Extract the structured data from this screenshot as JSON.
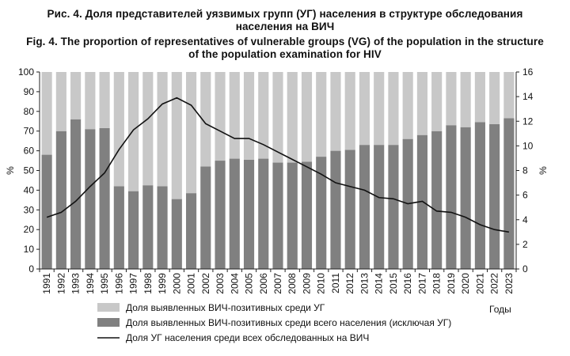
{
  "figure": {
    "title_ru": [
      "Рис. 4. Доля представителей уязвимых групп (УГ) населения в структуре обследования",
      "населения на ВИЧ"
    ],
    "title_en": [
      "Fig. 4. The proportion of representatives of vulnerable groups (VG) of the population in the structure",
      "of the population examination for HIV"
    ]
  },
  "chart_data": {
    "type": "bar",
    "categories": [
      "1991",
      "1992",
      "1993",
      "1994",
      "1995",
      "1996",
      "1997",
      "1998",
      "1999",
      "2000",
      "2001",
      "2002",
      "2003",
      "2004",
      "2005",
      "2006",
      "2007",
      "2008",
      "2009",
      "2010",
      "2011",
      "2012",
      "2013",
      "2014",
      "2015",
      "2016",
      "2017",
      "2018",
      "2019",
      "2020",
      "2021",
      "2022",
      "2023"
    ],
    "xlabel": "Годы",
    "ylabel_left": "%",
    "ylabel_right": "%",
    "ylim_left": [
      0,
      100
    ],
    "ylim_right": [
      0,
      16
    ],
    "yticks_left": [
      0,
      10,
      20,
      30,
      40,
      50,
      60,
      70,
      80,
      90,
      100
    ],
    "yticks_right": [
      0,
      2,
      4,
      6,
      8,
      10,
      12,
      14,
      16
    ],
    "stacked": true,
    "legend_position": "bottom",
    "series": [
      {
        "name": "Доля выявленных ВИЧ-позитивных среди УГ",
        "kind": "bar-stack-top",
        "color": "#c8c8c8",
        "values": [
          42,
          30,
          24,
          29,
          28.5,
          58,
          60.5,
          57.5,
          58,
          64.5,
          61.5,
          48,
          45,
          44,
          44.5,
          44,
          46,
          46,
          45.5,
          43,
          40,
          39.5,
          37,
          37,
          37,
          34,
          32,
          30,
          27,
          28,
          25.5,
          26.5,
          23.5
        ]
      },
      {
        "name": "Доля выявленных ВИЧ-позитивных среди всего населения (исключая УГ)",
        "kind": "bar",
        "color": "#808080",
        "values": [
          58,
          70,
          76,
          71,
          71.5,
          42,
          39.5,
          42.5,
          42,
          35.5,
          38.5,
          52,
          55,
          56,
          55.5,
          56,
          54,
          54,
          54.5,
          57,
          60,
          60.5,
          63,
          63,
          63,
          66,
          68,
          70,
          73,
          72,
          74.5,
          73.5,
          76.5
        ]
      },
      {
        "name": "Доля УГ населения среди всех обследованных на ВИЧ",
        "kind": "line",
        "axis": "right",
        "color": "#111111",
        "values": [
          4.2,
          4.6,
          5.5,
          6.7,
          7.8,
          9.7,
          11.3,
          12.2,
          13.4,
          13.9,
          13.3,
          11.8,
          11.2,
          10.6,
          10.6,
          10.1,
          9.5,
          8.9,
          8.3,
          7.7,
          7.0,
          6.7,
          6.4,
          5.8,
          5.7,
          5.3,
          5.5,
          4.7,
          4.6,
          4.2,
          3.6,
          3.2,
          3.0
        ]
      }
    ]
  }
}
